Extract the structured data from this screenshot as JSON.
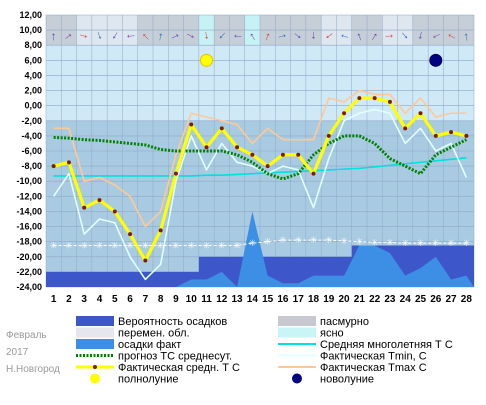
{
  "chart_data": {
    "type": "line",
    "x": [
      1,
      2,
      3,
      4,
      5,
      6,
      7,
      8,
      9,
      10,
      11,
      12,
      13,
      14,
      15,
      16,
      17,
      18,
      19,
      20,
      21,
      22,
      23,
      24,
      25,
      26,
      27,
      28
    ],
    "ylim": [
      -24,
      12
    ],
    "yticks": [
      "12,00",
      "10,00",
      "8,00",
      "6,00",
      "4,00",
      "2,00",
      "0,00",
      "-2,00",
      "-4,00",
      "-6,00",
      "-8,00",
      "-10,00",
      "-12,00",
      "-14,00",
      "-16,00",
      "-18,00",
      "-20,00",
      "-22,00",
      "-24,00"
    ],
    "grid": true,
    "series": [
      {
        "name": "Фактическая средн. Т С",
        "color": "#ffff00",
        "values": [
          -8,
          -7.5,
          -13.5,
          -12.5,
          -14,
          -17,
          -20.5,
          -16.5,
          -9,
          -2.5,
          -5.5,
          -3,
          -5.5,
          -6.5,
          -8,
          -6.5,
          -6.5,
          -9,
          -4,
          -1,
          1,
          1,
          0.5,
          -3,
          -1,
          -4,
          -3.5,
          -4
        ]
      },
      {
        "name": "Фактическая Tmin, C",
        "color": "#e0ffff",
        "values": [
          -12,
          -9,
          -17,
          -15,
          -15.5,
          -20,
          -23,
          -21,
          -10,
          -4,
          -8.5,
          -5,
          -7.5,
          -8,
          -9,
          -8,
          -8.5,
          -13.5,
          -7,
          -2,
          -1,
          -0.5,
          -1,
          -5,
          -3,
          -6,
          -5,
          -9.5
        ]
      },
      {
        "name": "Фактическая Tmax C",
        "color": "#ffc896",
        "values": [
          -3,
          -3,
          -10,
          -9.5,
          -10.5,
          -12,
          -16,
          -14,
          -6.5,
          -1,
          -1.5,
          -2,
          -2.5,
          -5,
          -3,
          -4.5,
          -4.5,
          -4.5,
          1,
          0.5,
          2,
          1.5,
          1.5,
          -1,
          1,
          -1.5,
          -1,
          -1
        ]
      },
      {
        "name": "прогноз ТС среднесут.",
        "color": "#008000",
        "values": [
          -4.2,
          -4.3,
          -4.5,
          -4.6,
          -4.8,
          -5,
          -5.2,
          -5.8,
          -6,
          -6,
          -6,
          -6,
          -6.5,
          -7.5,
          -9,
          -9.7,
          -9,
          -6.5,
          -5,
          -4,
          -4,
          -5,
          -7,
          -8,
          -9,
          -6.5,
          -5.5,
          -4.5
        ]
      },
      {
        "name": "Средняя многолетняя Т С",
        "color": "#00e0e0",
        "values": [
          -9.3,
          -9.3,
          -9.3,
          -9.3,
          -9.3,
          -9.3,
          -9.3,
          -9.3,
          -9.3,
          -9.3,
          -9.2,
          -9.2,
          -9.1,
          -9,
          -8.9,
          -8.8,
          -8.7,
          -8.6,
          -8.5,
          -8.4,
          -8.3,
          -8.1,
          -7.9,
          -7.7,
          -7.5,
          -7.3,
          -7.1,
          -6.9
        ]
      },
      {
        "name": "осадки факт",
        "color": "#3d8fe6",
        "values": [
          -24,
          -24,
          -24,
          -24,
          -24,
          -24,
          -24,
          -24,
          -24,
          -23,
          -23,
          -22,
          -24,
          -14,
          -22.5,
          -23.5,
          -23.5,
          -22.5,
          -22.5,
          -22.5,
          -18.5,
          -18.5,
          -19.5,
          -22.5,
          -21.5,
          -20,
          -23,
          -22.5
        ]
      },
      {
        "name": "Вероятность осадков",
        "color": "#3d56c9",
        "values": [
          -22,
          -22,
          -22,
          -22,
          -22,
          -22,
          -22,
          -22,
          -22,
          -22,
          -20,
          -20,
          -20,
          -20,
          -20,
          -20,
          -20,
          -20,
          -20,
          -20,
          -18.5,
          -18.5,
          -18.5,
          -18.5,
          -18.5,
          -18.5,
          -18.5,
          -18.5
        ]
      },
      {
        "name": "снег",
        "color": "#ffffff",
        "values": [
          -18.5,
          -18.5,
          -18.5,
          -18.5,
          -18.5,
          -18.5,
          -18.5,
          -18.5,
          -18.5,
          -18.5,
          -18.5,
          -18.5,
          -18.5,
          -18.2,
          -18,
          -17.8,
          -17.8,
          -17.8,
          -17.8,
          -17.9,
          -18,
          -18.1,
          -18.1,
          -18.2,
          -18.2,
          -18.2,
          -18.2,
          -18.2
        ]
      }
    ],
    "clouds": [
      "overcast",
      "overcast",
      "variable",
      "variable",
      "variable",
      "variable",
      "overcast",
      "overcast",
      "overcast",
      "overcast",
      "clear",
      "overcast",
      "overcast",
      "clear",
      "overcast",
      "overcast",
      "overcast",
      "overcast",
      "variable",
      "variable",
      "overcast",
      "overcast",
      "variable",
      "variable",
      "overcast",
      "overcast",
      "overcast",
      "overcast"
    ],
    "moon": [
      {
        "day": 11,
        "phase": "full"
      },
      {
        "day": 26,
        "phase": "new"
      }
    ],
    "side_text": [
      "Февраль",
      "2017",
      "Н.Новгород"
    ],
    "legend": [
      {
        "label": "Вероятность осадков",
        "key": "precip_prob",
        "color": "#3d56c9"
      },
      {
        "label": "пасмурно",
        "key": "overcast",
        "color": "#c8c8d0"
      },
      {
        "label": "перемен. обл.",
        "key": "variable",
        "color": "#e6e6ee"
      },
      {
        "label": "ясно",
        "key": "clear",
        "color": "#c8f5f5"
      },
      {
        "label": "осадки факт",
        "key": "precip_fact",
        "color": "#3d8fe6"
      },
      {
        "label": "Средняя многолетняя Т С",
        "key": "norm",
        "color": "#00e0e0"
      },
      {
        "label": "прогноз ТС среднесут.",
        "key": "forecast",
        "color": "#008000"
      },
      {
        "label": "Фактическая Tmin, C",
        "key": "tmin",
        "color": "#e0ffff"
      },
      {
        "label": "Фактическая средн. Т С",
        "key": "tavg",
        "color": "#ffff00"
      },
      {
        "label": "Фактическая Tmax C",
        "key": "tmax",
        "color": "#ffc896"
      },
      {
        "label": "полнолуние",
        "key": "full_moon",
        "color": "#ffff00"
      },
      {
        "label": "новолуние",
        "key": "new_moon",
        "color": "#000080"
      }
    ]
  }
}
